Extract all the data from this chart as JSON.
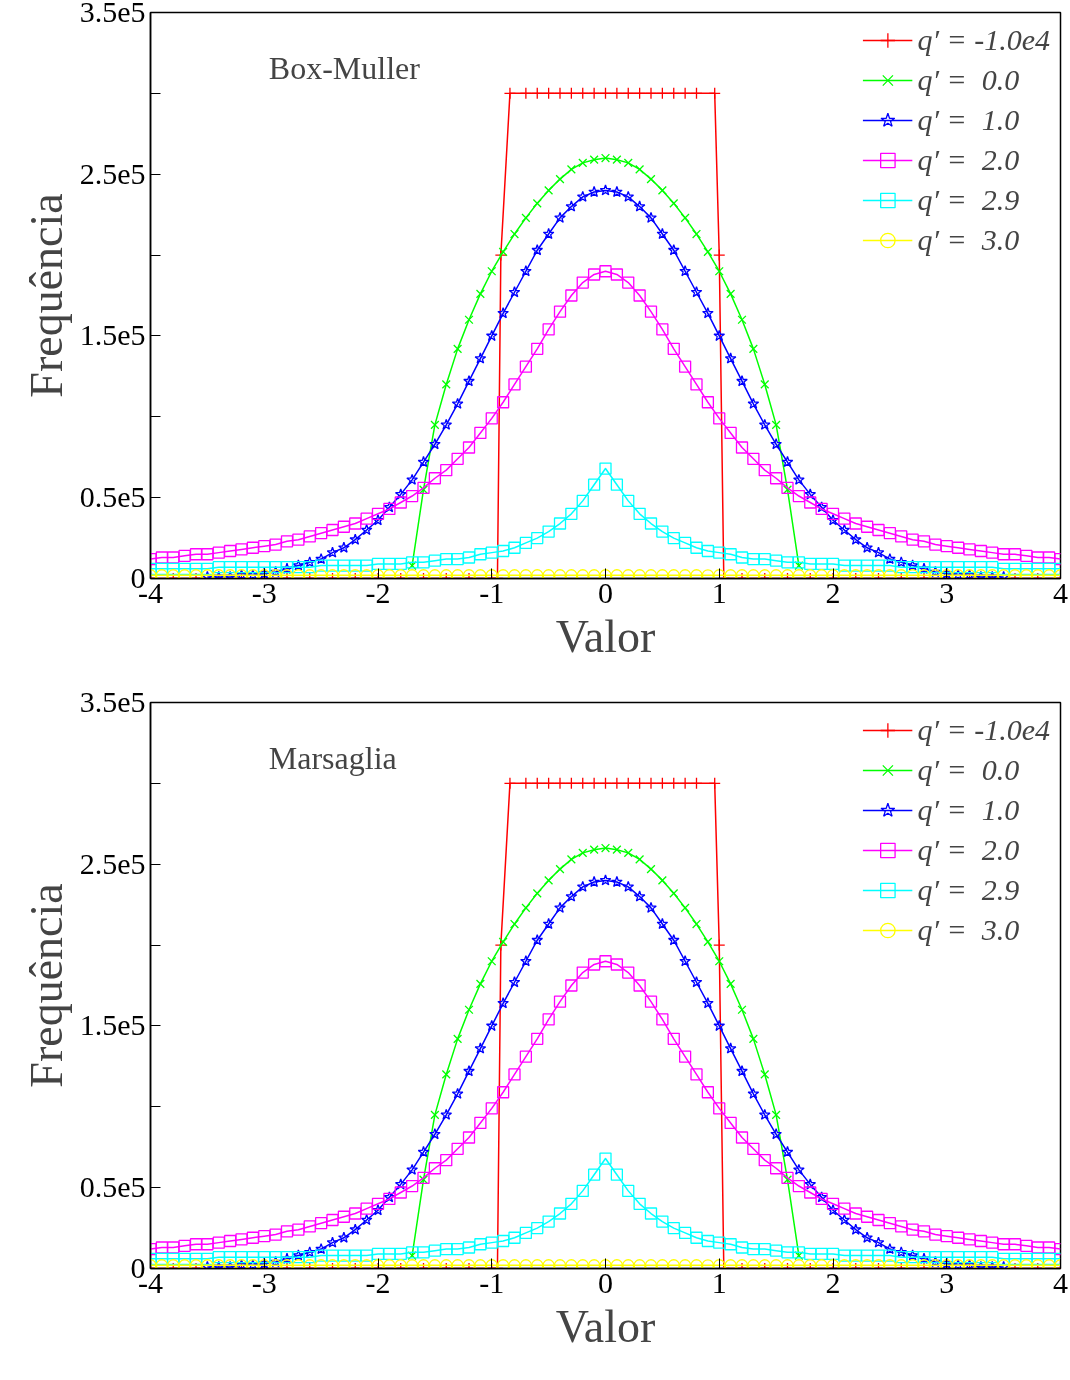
{
  "chart_data": [
    {
      "type": "line",
      "annotations": [
        "Box-Muller"
      ],
      "xlabel": "Valor",
      "ylabel": "Frequência",
      "xlim": [
        -4,
        4
      ],
      "ylim": [
        0,
        350000
      ],
      "xticks": [
        -4,
        -3,
        -2,
        -1,
        0,
        1,
        2,
        3,
        4
      ],
      "yticks": [
        0,
        {
          "value": 50000,
          "label": "0.5e5"
        },
        {
          "value": 100000,
          "label": null
        },
        {
          "value": 150000,
          "label": "1.5e5"
        },
        {
          "value": 200000,
          "label": null
        },
        {
          "value": 250000,
          "label": "2.5e5"
        },
        {
          "value": 300000,
          "label": null
        },
        {
          "value": 350000,
          "label": "3.5e5"
        }
      ],
      "legend": "top right",
      "x": [
        -4,
        -3.9,
        -3.8,
        -3.7,
        -3.6,
        -3.5,
        -3.4,
        -3.3,
        -3.2,
        -3.1,
        -3,
        -2.9,
        -2.8,
        -2.7,
        -2.6,
        -2.5,
        -2.4,
        -2.3,
        -2.2,
        -2.1,
        -2,
        -1.9,
        -1.8,
        -1.7,
        -1.6,
        -1.5,
        -1.4,
        -1.3,
        -1.2,
        -1.1,
        -1,
        -0.9,
        -0.8,
        -0.7,
        -0.6,
        -0.5,
        -0.4,
        -0.3,
        -0.2,
        -0.1,
        0,
        0.1,
        0.2,
        0.3,
        0.4,
        0.5,
        0.6,
        0.7,
        0.8,
        0.9,
        1,
        1.1,
        1.2,
        1.3,
        1.4,
        1.5,
        1.6,
        1.7,
        1.8,
        1.9,
        2,
        2.1,
        2.2,
        2.3,
        2.4,
        2.5,
        2.6,
        2.7,
        2.8,
        2.9,
        3,
        3.1,
        3.2,
        3.3,
        3.4,
        3.5,
        3.6,
        3.7,
        3.8,
        3.9,
        4
      ],
      "series": [
        {
          "name": "q′ = -1.0e4",
          "color": "#ff0000",
          "marker": "cross",
          "x": [
            -4,
            -3.8,
            -3.6,
            -3.4,
            -3.2,
            -3,
            -2.8,
            -2.6,
            -2.4,
            -2.2,
            -2,
            -1.8,
            -1.6,
            -1.4,
            -1.2,
            -1,
            -0.95,
            -0.92,
            -0.84,
            -0.7,
            -0.6,
            -0.5,
            -0.4,
            -0.3,
            -0.2,
            -0.1,
            0,
            0.1,
            0.2,
            0.3,
            0.4,
            0.5,
            0.6,
            0.7,
            0.8,
            0.96,
            1,
            1.04,
            1.2,
            1.4,
            1.6,
            1.8,
            2,
            2.2,
            2.4,
            2.6,
            2.8,
            3,
            3.2,
            3.4,
            3.6,
            3.8,
            4
          ],
          "values": [
            0,
            0,
            0,
            0,
            0,
            0,
            0,
            0,
            0,
            0,
            0,
            0,
            0,
            0,
            0,
            0,
            0,
            200000,
            300000,
            300000,
            300000,
            300000,
            300000,
            300000,
            300000,
            300000,
            300000,
            300000,
            300000,
            300000,
            300000,
            300000,
            300000,
            300000,
            300000,
            300000,
            200000,
            0,
            0,
            0,
            0,
            0,
            0,
            0,
            0,
            0,
            0,
            0,
            0,
            0,
            0,
            0,
            0
          ]
        },
        {
          "name": "q′ =  0.0",
          "color": "#00ff00",
          "marker": "x",
          "values": [
            null,
            null,
            null,
            null,
            null,
            null,
            null,
            null,
            null,
            null,
            null,
            null,
            null,
            null,
            null,
            null,
            null,
            null,
            null,
            null,
            null,
            null,
            null,
            8000,
            55000,
            95000,
            120000,
            142000,
            160000,
            176000,
            190000,
            202000,
            213000,
            223000,
            232000,
            240000,
            247000,
            253000,
            257000,
            259000,
            260000,
            259000,
            257000,
            253000,
            247000,
            240000,
            232000,
            223000,
            213000,
            202000,
            190000,
            176000,
            160000,
            142000,
            120000,
            95000,
            55000,
            8000,
            null,
            null,
            null,
            null,
            null,
            null,
            null,
            null,
            null,
            null,
            null,
            null,
            null,
            null,
            null,
            null,
            null,
            null,
            null,
            null,
            null,
            null,
            null
          ]
        },
        {
          "name": "q′ =  1.0",
          "color": "#0000ff",
          "marker": "star",
          "values": [
            null,
            null,
            null,
            null,
            null,
            1000,
            1000,
            1000,
            2000,
            2000,
            3000,
            4000,
            6000,
            8000,
            10000,
            12000,
            16000,
            19000,
            24000,
            30000,
            36000,
            44000,
            52000,
            61000,
            72000,
            83000,
            95000,
            108000,
            122000,
            136000,
            150000,
            164000,
            177000,
            190000,
            203000,
            213000,
            223000,
            230000,
            236000,
            239000,
            240000,
            239000,
            236000,
            230000,
            223000,
            213000,
            203000,
            190000,
            177000,
            164000,
            150000,
            136000,
            122000,
            108000,
            95000,
            83000,
            72000,
            61000,
            52000,
            44000,
            36000,
            30000,
            24000,
            19000,
            16000,
            12000,
            10000,
            8000,
            6000,
            4000,
            3000,
            2000,
            2000,
            1000,
            1000,
            1000,
            null,
            null,
            null,
            null,
            null
          ]
        },
        {
          "name": "q′ =  2.0",
          "color": "#ff00ff",
          "marker": "square",
          "values": [
            12000,
            13000,
            13000,
            14000,
            15000,
            15000,
            16000,
            17000,
            18000,
            19000,
            20000,
            21000,
            23000,
            24000,
            26000,
            28000,
            30000,
            32000,
            34000,
            37000,
            40000,
            43000,
            47000,
            51000,
            56000,
            62000,
            67000,
            74000,
            81000,
            90000,
            99000,
            109000,
            120000,
            131000,
            142000,
            154000,
            165000,
            175000,
            183000,
            188000,
            190000,
            188000,
            183000,
            175000,
            165000,
            154000,
            142000,
            131000,
            120000,
            109000,
            99000,
            90000,
            81000,
            74000,
            67000,
            62000,
            56000,
            51000,
            47000,
            43000,
            40000,
            37000,
            34000,
            32000,
            30000,
            28000,
            26000,
            24000,
            23000,
            21000,
            20000,
            19000,
            18000,
            17000,
            16000,
            15000,
            15000,
            14000,
            13000,
            13000,
            12000
          ]
        },
        {
          "name": "q′ =  2.9",
          "color": "#00ffff",
          "marker": "square",
          "values": [
            6000,
            6000,
            6000,
            6000,
            6000,
            6000,
            7000,
            7000,
            7000,
            7000,
            7000,
            7000,
            7000,
            7000,
            7000,
            8000,
            8000,
            8000,
            8000,
            8000,
            9000,
            9000,
            9000,
            10000,
            10000,
            11000,
            12000,
            12000,
            13000,
            15000,
            16000,
            17000,
            19000,
            22000,
            25000,
            29000,
            34000,
            40000,
            48000,
            58000,
            68000,
            58000,
            48000,
            40000,
            34000,
            29000,
            25000,
            22000,
            19000,
            17000,
            16000,
            15000,
            13000,
            12000,
            12000,
            11000,
            10000,
            10000,
            9000,
            9000,
            9000,
            8000,
            8000,
            8000,
            8000,
            8000,
            7000,
            7000,
            7000,
            7000,
            7000,
            7000,
            7000,
            7000,
            7000,
            6000,
            6000,
            6000,
            6000,
            6000,
            6000
          ]
        },
        {
          "name": "q′ =  3.0",
          "color": "#ffff00",
          "marker": "circle",
          "values": [
            2000,
            2000,
            2000,
            2000,
            2000,
            2000,
            2000,
            2000,
            2000,
            2000,
            2000,
            2000,
            2000,
            2000,
            2000,
            2000,
            2000,
            2000,
            2000,
            2000,
            2000,
            2000,
            2000,
            2000,
            2000,
            2000,
            2000,
            2000,
            2000,
            2000,
            2000,
            2000,
            2000,
            2000,
            2000,
            2000,
            2000,
            2000,
            2000,
            2000,
            2000,
            2000,
            2000,
            2000,
            2000,
            2000,
            2000,
            2000,
            2000,
            2000,
            2000,
            2000,
            2000,
            2000,
            2000,
            2000,
            2000,
            2000,
            2000,
            2000,
            2000,
            2000,
            2000,
            2000,
            2000,
            2000,
            2000,
            2000,
            2000,
            2000,
            2000,
            2000,
            2000,
            2000,
            2000,
            2000,
            2000,
            2000,
            2000,
            2000,
            2000
          ]
        }
      ]
    },
    {
      "type": "line",
      "annotations": [
        "Marsaglia"
      ],
      "xlabel": "Valor",
      "ylabel": "Frequência",
      "xlim": [
        -4,
        4
      ],
      "ylim": [
        0,
        350000
      ],
      "xticks": [
        -4,
        -3,
        -2,
        -1,
        0,
        1,
        2,
        3,
        4
      ],
      "yticks": [
        0,
        {
          "value": 50000,
          "label": "0.5e5"
        },
        {
          "value": 100000,
          "label": null
        },
        {
          "value": 150000,
          "label": "1.5e5"
        },
        {
          "value": 200000,
          "label": null
        },
        {
          "value": 250000,
          "label": "2.5e5"
        },
        {
          "value": 300000,
          "label": null
        },
        {
          "value": 350000,
          "label": "3.5e5"
        }
      ],
      "legend": "top right",
      "x": [
        -4,
        -3.9,
        -3.8,
        -3.7,
        -3.6,
        -3.5,
        -3.4,
        -3.3,
        -3.2,
        -3.1,
        -3,
        -2.9,
        -2.8,
        -2.7,
        -2.6,
        -2.5,
        -2.4,
        -2.3,
        -2.2,
        -2.1,
        -2,
        -1.9,
        -1.8,
        -1.7,
        -1.6,
        -1.5,
        -1.4,
        -1.3,
        -1.2,
        -1.1,
        -1,
        -0.9,
        -0.8,
        -0.7,
        -0.6,
        -0.5,
        -0.4,
        -0.3,
        -0.2,
        -0.1,
        0,
        0.1,
        0.2,
        0.3,
        0.4,
        0.5,
        0.6,
        0.7,
        0.8,
        0.9,
        1,
        1.1,
        1.2,
        1.3,
        1.4,
        1.5,
        1.6,
        1.7,
        1.8,
        1.9,
        2,
        2.1,
        2.2,
        2.3,
        2.4,
        2.5,
        2.6,
        2.7,
        2.8,
        2.9,
        3,
        3.1,
        3.2,
        3.3,
        3.4,
        3.5,
        3.6,
        3.7,
        3.8,
        3.9,
        4
      ],
      "series": [
        {
          "name": "q′ = -1.0e4",
          "color": "#ff0000",
          "marker": "cross",
          "x": [
            -4,
            -3.8,
            -3.6,
            -3.4,
            -3.2,
            -3,
            -2.8,
            -2.6,
            -2.4,
            -2.2,
            -2,
            -1.8,
            -1.6,
            -1.4,
            -1.2,
            -1,
            -0.95,
            -0.92,
            -0.84,
            -0.7,
            -0.6,
            -0.5,
            -0.4,
            -0.3,
            -0.2,
            -0.1,
            0,
            0.1,
            0.2,
            0.3,
            0.4,
            0.5,
            0.6,
            0.7,
            0.8,
            0.96,
            1,
            1.04,
            1.2,
            1.4,
            1.6,
            1.8,
            2,
            2.2,
            2.4,
            2.6,
            2.8,
            3,
            3.2,
            3.4,
            3.6,
            3.8,
            4
          ],
          "values": [
            0,
            0,
            0,
            0,
            0,
            0,
            0,
            0,
            0,
            0,
            0,
            0,
            0,
            0,
            0,
            0,
            0,
            200000,
            300000,
            300000,
            300000,
            300000,
            300000,
            300000,
            300000,
            300000,
            300000,
            300000,
            300000,
            300000,
            300000,
            300000,
            300000,
            300000,
            300000,
            300000,
            200000,
            0,
            0,
            0,
            0,
            0,
            0,
            0,
            0,
            0,
            0,
            0,
            0,
            0,
            0,
            0,
            0
          ]
        },
        {
          "name": "q′ =  0.0",
          "color": "#00ff00",
          "marker": "x",
          "values": [
            null,
            null,
            null,
            null,
            null,
            null,
            null,
            null,
            null,
            null,
            null,
            null,
            null,
            null,
            null,
            null,
            null,
            null,
            null,
            null,
            null,
            null,
            null,
            8000,
            55000,
            95000,
            120000,
            142000,
            160000,
            176000,
            190000,
            202000,
            213000,
            223000,
            232000,
            240000,
            247000,
            253000,
            257000,
            259000,
            260000,
            259000,
            257000,
            253000,
            247000,
            240000,
            232000,
            223000,
            213000,
            202000,
            190000,
            176000,
            160000,
            142000,
            120000,
            95000,
            55000,
            8000,
            null,
            null,
            null,
            null,
            null,
            null,
            null,
            null,
            null,
            null,
            null,
            null,
            null,
            null,
            null,
            null,
            null,
            null,
            null,
            null,
            null,
            null,
            null
          ]
        },
        {
          "name": "q′ =  1.0",
          "color": "#0000ff",
          "marker": "star",
          "values": [
            null,
            null,
            null,
            null,
            null,
            1000,
            1000,
            1000,
            2000,
            2000,
            3000,
            4000,
            6000,
            8000,
            10000,
            12000,
            16000,
            19000,
            24000,
            30000,
            36000,
            44000,
            52000,
            61000,
            72000,
            83000,
            95000,
            108000,
            122000,
            136000,
            150000,
            164000,
            177000,
            190000,
            203000,
            213000,
            223000,
            230000,
            236000,
            239000,
            240000,
            239000,
            236000,
            230000,
            223000,
            213000,
            203000,
            190000,
            177000,
            164000,
            150000,
            136000,
            122000,
            108000,
            95000,
            83000,
            72000,
            61000,
            52000,
            44000,
            36000,
            30000,
            24000,
            19000,
            16000,
            12000,
            10000,
            8000,
            6000,
            4000,
            3000,
            2000,
            2000,
            1000,
            1000,
            1000,
            null,
            null,
            null,
            null,
            null
          ]
        },
        {
          "name": "q′ =  2.0",
          "color": "#ff00ff",
          "marker": "square",
          "values": [
            12000,
            13000,
            13000,
            14000,
            15000,
            15000,
            16000,
            17000,
            18000,
            19000,
            20000,
            21000,
            23000,
            24000,
            26000,
            28000,
            30000,
            32000,
            34000,
            37000,
            40000,
            43000,
            47000,
            51000,
            56000,
            62000,
            67000,
            74000,
            81000,
            90000,
            99000,
            109000,
            120000,
            131000,
            142000,
            154000,
            165000,
            175000,
            183000,
            188000,
            190000,
            188000,
            183000,
            175000,
            165000,
            154000,
            142000,
            131000,
            120000,
            109000,
            99000,
            90000,
            81000,
            74000,
            67000,
            62000,
            56000,
            51000,
            47000,
            43000,
            40000,
            37000,
            34000,
            32000,
            30000,
            28000,
            26000,
            24000,
            23000,
            21000,
            20000,
            19000,
            18000,
            17000,
            16000,
            15000,
            15000,
            14000,
            13000,
            13000,
            12000
          ]
        },
        {
          "name": "q′ =  2.9",
          "color": "#00ffff",
          "marker": "square",
          "values": [
            6000,
            6000,
            6000,
            6000,
            6000,
            6000,
            7000,
            7000,
            7000,
            7000,
            7000,
            7000,
            7000,
            7000,
            7000,
            8000,
            8000,
            8000,
            8000,
            8000,
            9000,
            9000,
            9000,
            10000,
            10000,
            11000,
            12000,
            12000,
            13000,
            15000,
            16000,
            17000,
            19000,
            22000,
            25000,
            29000,
            34000,
            40000,
            48000,
            58000,
            68000,
            58000,
            48000,
            40000,
            34000,
            29000,
            25000,
            22000,
            19000,
            17000,
            16000,
            15000,
            13000,
            12000,
            12000,
            11000,
            10000,
            10000,
            9000,
            9000,
            9000,
            8000,
            8000,
            8000,
            8000,
            8000,
            7000,
            7000,
            7000,
            7000,
            7000,
            7000,
            7000,
            7000,
            7000,
            6000,
            6000,
            6000,
            6000,
            6000,
            6000
          ]
        },
        {
          "name": "q′ =  3.0",
          "color": "#ffff00",
          "marker": "circle",
          "values": [
            2000,
            2000,
            2000,
            2000,
            2000,
            2000,
            2000,
            2000,
            2000,
            2000,
            2000,
            2000,
            2000,
            2000,
            2000,
            2000,
            2000,
            2000,
            2000,
            2000,
            2000,
            2000,
            2000,
            2000,
            2000,
            2000,
            2000,
            2000,
            2000,
            2000,
            2000,
            2000,
            2000,
            2000,
            2000,
            2000,
            2000,
            2000,
            2000,
            2000,
            2000,
            2000,
            2000,
            2000,
            2000,
            2000,
            2000,
            2000,
            2000,
            2000,
            2000,
            2000,
            2000,
            2000,
            2000,
            2000,
            2000,
            2000,
            2000,
            2000,
            2000,
            2000,
            2000,
            2000,
            2000,
            2000,
            2000,
            2000,
            2000,
            2000,
            2000,
            2000,
            2000,
            2000,
            2000,
            2000,
            2000,
            2000,
            2000,
            2000,
            2000
          ]
        }
      ]
    }
  ]
}
